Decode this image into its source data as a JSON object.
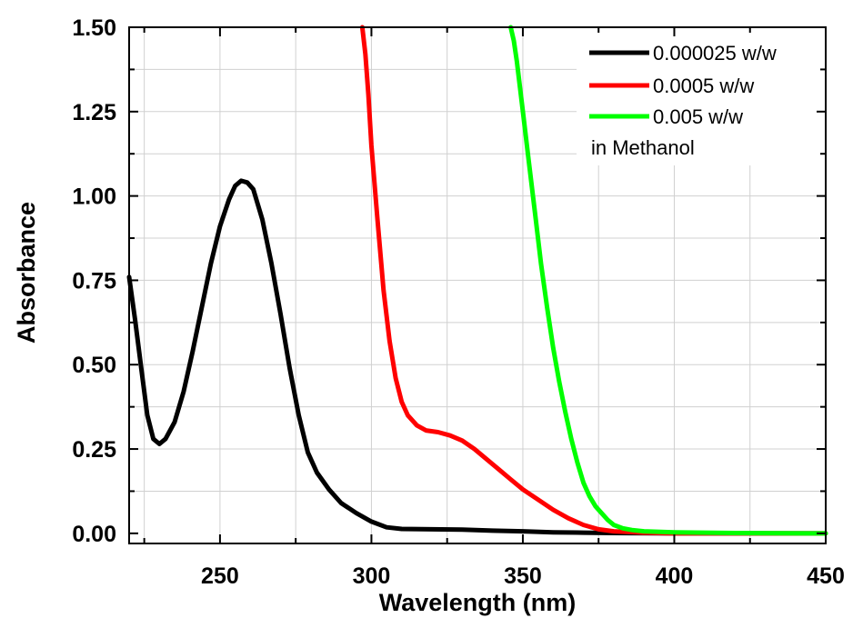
{
  "chart_data": {
    "type": "line",
    "xlabel": "Wavelength (nm)",
    "ylabel": "Absorbance",
    "xlim": [
      220,
      450
    ],
    "ylim": [
      -0.03,
      1.5
    ],
    "x_ticks": [
      "250",
      "300",
      "350",
      "400",
      "450"
    ],
    "y_ticks": [
      "0.00",
      "0.25",
      "0.50",
      "0.75",
      "1.00",
      "1.25",
      "1.50"
    ],
    "grid": true,
    "legend_position": "top-right",
    "legend_note": "in Methanol",
    "series": [
      {
        "name": "0.000025 w/w",
        "color": "#000000",
        "points": [
          [
            220,
            0.76
          ],
          [
            222,
            0.63
          ],
          [
            224,
            0.49
          ],
          [
            226,
            0.35
          ],
          [
            228,
            0.28
          ],
          [
            230,
            0.265
          ],
          [
            232,
            0.28
          ],
          [
            235,
            0.33
          ],
          [
            238,
            0.42
          ],
          [
            241,
            0.54
          ],
          [
            244,
            0.67
          ],
          [
            247,
            0.8
          ],
          [
            250,
            0.91
          ],
          [
            253,
            0.99
          ],
          [
            255,
            1.03
          ],
          [
            257,
            1.045
          ],
          [
            259,
            1.04
          ],
          [
            261,
            1.02
          ],
          [
            264,
            0.93
          ],
          [
            267,
            0.8
          ],
          [
            270,
            0.65
          ],
          [
            273,
            0.49
          ],
          [
            276,
            0.35
          ],
          [
            279,
            0.24
          ],
          [
            282,
            0.18
          ],
          [
            286,
            0.13
          ],
          [
            290,
            0.09
          ],
          [
            295,
            0.06
          ],
          [
            300,
            0.035
          ],
          [
            305,
            0.018
          ],
          [
            310,
            0.013
          ],
          [
            320,
            0.012
          ],
          [
            330,
            0.011
          ],
          [
            340,
            0.008
          ],
          [
            350,
            0.006
          ],
          [
            360,
            0.003
          ],
          [
            370,
            0.002
          ],
          [
            380,
            0.001
          ],
          [
            400,
            0.0
          ],
          [
            450,
            0.0
          ]
        ]
      },
      {
        "name": "0.0005 w/w",
        "color": "#ff0000",
        "points": [
          [
            297,
            1.5
          ],
          [
            298,
            1.42
          ],
          [
            299,
            1.3
          ],
          [
            300,
            1.15
          ],
          [
            302,
            0.93
          ],
          [
            304,
            0.72
          ],
          [
            306,
            0.57
          ],
          [
            308,
            0.46
          ],
          [
            310,
            0.39
          ],
          [
            312,
            0.35
          ],
          [
            315,
            0.32
          ],
          [
            318,
            0.305
          ],
          [
            322,
            0.3
          ],
          [
            326,
            0.29
          ],
          [
            330,
            0.275
          ],
          [
            334,
            0.25
          ],
          [
            338,
            0.22
          ],
          [
            342,
            0.19
          ],
          [
            346,
            0.16
          ],
          [
            350,
            0.13
          ],
          [
            355,
            0.1
          ],
          [
            360,
            0.07
          ],
          [
            365,
            0.045
          ],
          [
            370,
            0.025
          ],
          [
            375,
            0.012
          ],
          [
            380,
            0.006
          ],
          [
            390,
            0.002
          ],
          [
            400,
            0.0
          ],
          [
            450,
            0.0
          ]
        ]
      },
      {
        "name": "0.005 w/w",
        "color": "#00ff00",
        "points": [
          [
            346,
            1.5
          ],
          [
            347,
            1.46
          ],
          [
            348,
            1.4
          ],
          [
            350,
            1.25
          ],
          [
            352,
            1.1
          ],
          [
            354,
            0.95
          ],
          [
            356,
            0.8
          ],
          [
            358,
            0.67
          ],
          [
            360,
            0.55
          ],
          [
            362,
            0.45
          ],
          [
            364,
            0.36
          ],
          [
            366,
            0.28
          ],
          [
            368,
            0.21
          ],
          [
            370,
            0.15
          ],
          [
            372,
            0.11
          ],
          [
            374,
            0.08
          ],
          [
            376,
            0.06
          ],
          [
            378,
            0.04
          ],
          [
            380,
            0.025
          ],
          [
            383,
            0.015
          ],
          [
            386,
            0.01
          ],
          [
            390,
            0.006
          ],
          [
            400,
            0.003
          ],
          [
            420,
            0.001
          ],
          [
            450,
            0.0
          ]
        ]
      }
    ]
  }
}
